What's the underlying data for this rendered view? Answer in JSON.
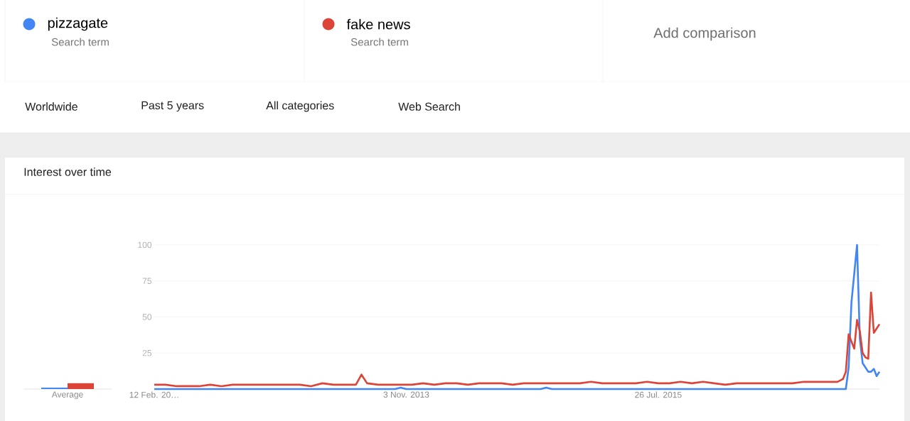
{
  "chart_data": [
    {
      "type": "line",
      "annotations": [
        "Search term",
        "Search term",
        "Add comparison",
        "Worldwide",
        "Past 5 years",
        "All categories",
        "Web Search"
      ],
      "legend": "top left",
      "grid": "y",
      "xlim": [
        "2012-02-12",
        "2017-01-29"
      ],
      "xticks": [
        {
          "value": "2012-02-12",
          "label": "12 Feb. 20…"
        },
        {
          "value": "2013-11-03",
          "label": "3 Nov. 2013"
        },
        {
          "value": "2015-07-26",
          "label": "26 Jul. 2015"
        }
      ],
      "ylim": [
        0,
        100
      ],
      "yticks": [
        25,
        50,
        75,
        100
      ],
      "series": [
        {
          "name": "pizzagate",
          "color": "#4285f4",
          "x": [
            "2012-02-12",
            "2013-01-13",
            "2013-10-06",
            "2013-10-20",
            "2013-11-03",
            "2014-10-05",
            "2014-10-19",
            "2014-11-02",
            "2015-06-28",
            "2016-10-30",
            "2016-11-06",
            "2016-11-13",
            "2016-11-20",
            "2016-11-27",
            "2016-12-04",
            "2016-12-11",
            "2016-12-18",
            "2016-12-25",
            "2017-01-01",
            "2017-01-08",
            "2017-01-15",
            "2017-01-22",
            "2017-01-29"
          ],
          "values": [
            0,
            0,
            0,
            1,
            0,
            0,
            1,
            0,
            0,
            0,
            0,
            15,
            60,
            80,
            100,
            35,
            18,
            15,
            12,
            12,
            14,
            9,
            12
          ]
        },
        {
          "name": "fake news",
          "color": "#db4437",
          "x": [
            "2012-02-12",
            "2012-03-11",
            "2012-04-08",
            "2012-05-06",
            "2012-06-03",
            "2012-07-01",
            "2012-07-29",
            "2012-08-26",
            "2012-09-23",
            "2012-10-21",
            "2012-11-18",
            "2012-12-16",
            "2013-01-13",
            "2013-02-10",
            "2013-03-10",
            "2013-04-07",
            "2013-05-05",
            "2013-06-02",
            "2013-06-30",
            "2013-07-14",
            "2013-07-28",
            "2013-08-25",
            "2013-09-22",
            "2013-10-20",
            "2013-11-17",
            "2013-12-15",
            "2014-01-12",
            "2014-02-09",
            "2014-03-09",
            "2014-04-06",
            "2014-05-04",
            "2014-06-01",
            "2014-06-29",
            "2014-07-27",
            "2014-08-24",
            "2014-09-21",
            "2014-10-19",
            "2014-11-16",
            "2014-12-14",
            "2015-01-11",
            "2015-02-08",
            "2015-03-08",
            "2015-04-05",
            "2015-05-03",
            "2015-05-31",
            "2015-06-28",
            "2015-07-26",
            "2015-08-23",
            "2015-09-20",
            "2015-10-18",
            "2015-11-15",
            "2015-12-13",
            "2016-01-10",
            "2016-02-07",
            "2016-03-06",
            "2016-04-03",
            "2016-05-01",
            "2016-05-29",
            "2016-06-26",
            "2016-07-24",
            "2016-08-21",
            "2016-09-18",
            "2016-10-16",
            "2016-10-23",
            "2016-10-30",
            "2016-11-06",
            "2016-11-13",
            "2016-11-20",
            "2016-11-27",
            "2016-12-04",
            "2016-12-11",
            "2016-12-18",
            "2016-12-25",
            "2017-01-01",
            "2017-01-08",
            "2017-01-15",
            "2017-01-22",
            "2017-01-29"
          ],
          "values": [
            3,
            3,
            2,
            2,
            2,
            3,
            2,
            3,
            3,
            3,
            3,
            3,
            3,
            3,
            2,
            4,
            3,
            3,
            3,
            10,
            4,
            3,
            3,
            3,
            3,
            4,
            3,
            4,
            4,
            3,
            4,
            4,
            4,
            3,
            4,
            4,
            4,
            4,
            4,
            4,
            5,
            4,
            4,
            4,
            4,
            5,
            4,
            4,
            5,
            4,
            5,
            4,
            3,
            4,
            4,
            4,
            4,
            4,
            4,
            5,
            5,
            5,
            5,
            6,
            7,
            12,
            38,
            33,
            28,
            48,
            40,
            25,
            22,
            21,
            67,
            39,
            42,
            45
          ]
        }
      ]
    },
    {
      "type": "bar",
      "title": "Interest over time",
      "categories": [
        "Average"
      ],
      "ylim": [
        0,
        100
      ],
      "tick_labels": "x",
      "series": [
        {
          "color": "#4285f4",
          "values": [
            1
          ]
        },
        {
          "color": "#db4437",
          "values": [
            4
          ]
        }
      ]
    }
  ]
}
